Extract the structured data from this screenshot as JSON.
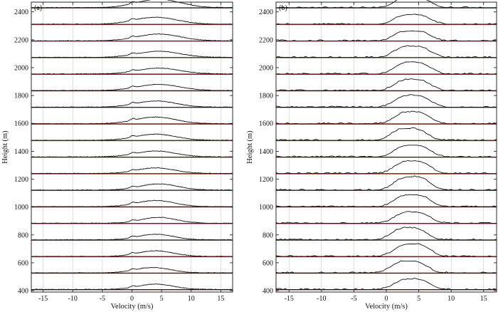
{
  "chart_data": [
    {
      "type": "line",
      "panel_label": "(a)",
      "xlabel": "Velocity (m/s)",
      "ylabel": "Height (m)",
      "xlim": [
        -17,
        17
      ],
      "ylim": [
        390,
        2470
      ],
      "x_ticks": [
        -15,
        -10,
        -5,
        0,
        5,
        10,
        15
      ],
      "y_ticks": [
        400,
        600,
        800,
        1000,
        1200,
        1400,
        1600,
        1800,
        2000,
        2200,
        2400
      ],
      "vertical_grid": true,
      "profile_heights": [
        408,
        527,
        645,
        764,
        883,
        1002,
        1121,
        1240,
        1359,
        1478,
        1597,
        1716,
        1835,
        1954,
        2073,
        2192,
        2311,
        2430
      ],
      "profile_peak_velocity": [
        4.0,
        3.5,
        4.0,
        4.0,
        4.5,
        4.0,
        4.5,
        4.0,
        4.0,
        4.0,
        4.0,
        4.0,
        4.5,
        4.5,
        4.5,
        4.5,
        4.0,
        4.5
      ],
      "profile_amplitude_m": [
        38,
        38,
        40,
        40,
        42,
        44,
        44,
        40,
        42,
        44,
        48,
        44,
        44,
        42,
        44,
        48,
        50,
        60
      ],
      "profile_width_ms": [
        3.0,
        3.0,
        3.0,
        3.0,
        3.0,
        3.2,
        3.2,
        3.2,
        3.4,
        3.4,
        3.4,
        3.4,
        3.6,
        3.6,
        3.6,
        3.6,
        3.6,
        3.6
      ],
      "fit_color": "#c0392b",
      "line_color": "#111111"
    },
    {
      "type": "line",
      "panel_label": "(b)",
      "xlabel": "Velocity (m/s)",
      "ylabel": "Height (m)",
      "xlim": [
        -17,
        17
      ],
      "ylim": [
        390,
        2470
      ],
      "x_ticks": [
        -15,
        -10,
        -5,
        0,
        5,
        10,
        15
      ],
      "y_ticks": [
        400,
        600,
        800,
        1000,
        1200,
        1400,
        1600,
        1800,
        2000,
        2200,
        2400
      ],
      "vertical_grid": true,
      "profile_heights": [
        408,
        527,
        645,
        764,
        883,
        1002,
        1121,
        1240,
        1359,
        1478,
        1597,
        1716,
        1835,
        1954,
        2073,
        2192,
        2311,
        2430
      ],
      "profile_peak_velocity": [
        4.0,
        3.5,
        4.0,
        3.5,
        4.0,
        4.0,
        4.0,
        4.0,
        4.0,
        3.5,
        4.0,
        4.0,
        4.0,
        4.0,
        4.0,
        4.0,
        4.0,
        4.0
      ],
      "profile_amplitude_m": [
        75,
        85,
        90,
        85,
        80,
        85,
        95,
        90,
        85,
        85,
        85,
        85,
        80,
        85,
        80,
        70,
        70,
        75
      ],
      "profile_width_ms": [
        2.6,
        2.6,
        2.6,
        2.6,
        2.6,
        2.6,
        2.6,
        2.6,
        2.6,
        2.6,
        2.6,
        2.6,
        2.6,
        2.6,
        2.6,
        2.6,
        2.6,
        2.6
      ],
      "fit_color": "#c0392b",
      "line_color": "#111111"
    }
  ]
}
